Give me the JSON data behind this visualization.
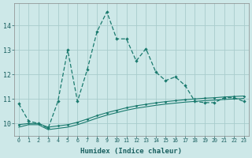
{
  "xlabel": "Humidex (Indice chaleur)",
  "x_values": [
    0,
    1,
    2,
    3,
    4,
    5,
    6,
    7,
    8,
    9,
    10,
    11,
    12,
    13,
    14,
    15,
    16,
    17,
    18,
    19,
    20,
    21,
    22,
    23
  ],
  "line1_y": [
    10.8,
    10.1,
    10.0,
    9.8,
    10.9,
    13.0,
    10.9,
    12.2,
    13.75,
    14.55,
    13.45,
    13.45,
    12.55,
    13.05,
    12.1,
    11.75,
    11.9,
    11.55,
    10.9,
    10.85,
    10.85,
    11.05,
    11.05,
    10.9
  ],
  "line2_y": [
    9.95,
    10.0,
    10.0,
    9.85,
    9.9,
    9.95,
    10.05,
    10.18,
    10.32,
    10.44,
    10.54,
    10.64,
    10.72,
    10.78,
    10.84,
    10.89,
    10.93,
    10.97,
    11.0,
    11.03,
    11.05,
    11.08,
    11.1,
    11.12
  ],
  "line3_y": [
    9.85,
    9.95,
    9.95,
    9.75,
    9.8,
    9.85,
    9.95,
    10.08,
    10.22,
    10.34,
    10.44,
    10.54,
    10.62,
    10.68,
    10.74,
    10.79,
    10.83,
    10.87,
    10.9,
    10.93,
    10.95,
    10.98,
    11.0,
    11.02
  ],
  "line_color": "#1a7a6e",
  "bg_color": "#cde8e8",
  "grid_color": "#a8cccc",
  "yticks": [
    10,
    11,
    12,
    13,
    14
  ],
  "ylim": [
    9.5,
    14.9
  ],
  "xlim": [
    -0.5,
    23.5
  ]
}
